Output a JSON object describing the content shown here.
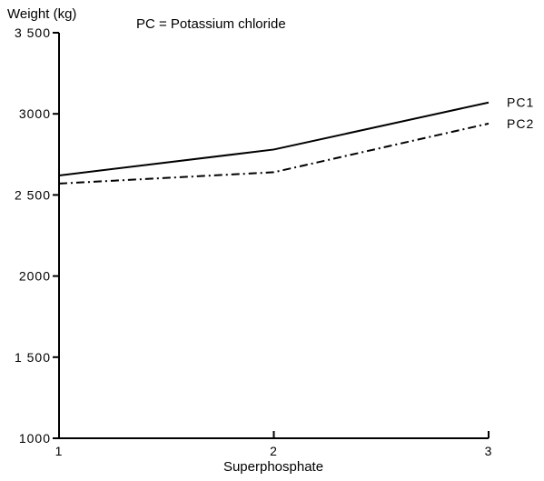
{
  "chart_data": {
    "type": "line",
    "ylabel": "Weight (kg)",
    "xlabel": "Superphosphate",
    "annotation": "PC = Potassium chloride",
    "x": [
      1,
      2,
      3
    ],
    "xlim": [
      1,
      3
    ],
    "ylim": [
      1000,
      3500
    ],
    "xticks": [
      1,
      2,
      3
    ],
    "xtick_labels": [
      "1",
      "2",
      "3"
    ],
    "yticks": [
      1000,
      1500,
      2000,
      2500,
      3000,
      3500
    ],
    "ytick_labels": [
      "1000",
      "1 500",
      "2000",
      "2 500",
      "3000",
      "3 500"
    ],
    "series": [
      {
        "name": "PC1",
        "values": [
          2620,
          2780,
          3070
        ],
        "style": "solid"
      },
      {
        "name": "PC2",
        "values": [
          2570,
          2640,
          2940
        ],
        "style": "dashdot"
      }
    ],
    "grid": false
  }
}
